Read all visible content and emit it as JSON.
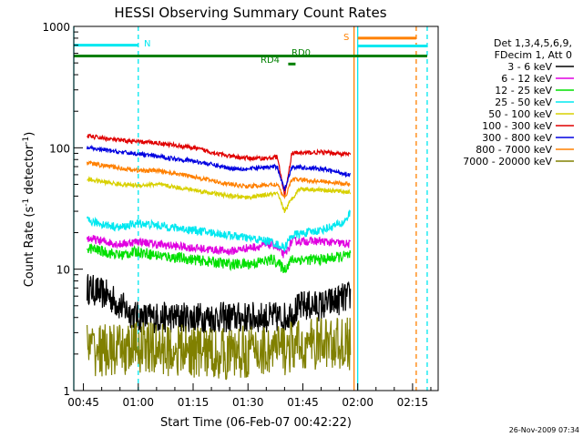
{
  "chart_data": {
    "type": "line",
    "title": "HESSI Observing Summary Count Rates",
    "xlabel": "Start Time (06-Feb-07 00:42:22)",
    "ylabel_main": "Count Rate (s",
    "ylabel_sup1": "-1",
    "ylabel_mid": " detector",
    "ylabel_sup2": "-1",
    "ylabel_end": ")",
    "y_scale": "log",
    "ylim": [
      1,
      1000
    ],
    "xlim": [
      "00:42:22",
      "02:22:00"
    ],
    "x_ticks": [
      "00:45",
      "01:00",
      "01:15",
      "01:30",
      "01:45",
      "02:00",
      "02:15"
    ],
    "y_ticks": [
      "1",
      "10",
      "100",
      "1000"
    ],
    "footer": "26-Nov-2009 07:34",
    "legend": {
      "position": "right",
      "header": [
        "Det 1,3,4,5,6,9,",
        "FDecim 1, Att 0"
      ],
      "entries": [
        {
          "label": "3 - 6 keV",
          "color": "#000000"
        },
        {
          "label": "6 - 12 keV",
          "color": "#e000e0"
        },
        {
          "label": "12 - 25 keV",
          "color": "#00e000"
        },
        {
          "label": "25 - 50 keV",
          "color": "#00e8f0"
        },
        {
          "label": "50 - 100 keV",
          "color": "#d8d000"
        },
        {
          "label": "100 - 300 keV",
          "color": "#e00000"
        },
        {
          "label": "300 - 800 keV",
          "color": "#0000e0"
        },
        {
          "label": "800 - 7000 keV",
          "color": "#ff8000"
        },
        {
          "label": "7000 - 20000 keV",
          "color": "#808000"
        }
      ]
    },
    "annotations": [
      {
        "label": "N",
        "color": "#00e8f0"
      },
      {
        "label": "S",
        "color": "#ff8000"
      },
      {
        "label": "RD0",
        "color": "#008000"
      },
      {
        "label": "RD4",
        "color": "#008000"
      }
    ],
    "series": [
      {
        "name": "3 - 6 keV",
        "color": "#000000",
        "noise": 0.13,
        "segments": [
          [
            [
              "00:46",
              7
            ],
            [
              "00:52",
              6
            ],
            [
              "00:55",
              5
            ],
            [
              "01:00",
              4
            ],
            [
              "01:05",
              4
            ],
            [
              "01:15",
              4
            ],
            [
              "01:30",
              4
            ],
            [
              "01:40",
              4
            ],
            [
              "01:45",
              5
            ],
            [
              "01:50",
              5
            ],
            [
              "01:58",
              6
            ]
          ]
        ]
      },
      {
        "name": "6 - 12 keV",
        "color": "#e000e0",
        "noise": 0.035,
        "segments": [
          [
            [
              "00:46",
              18
            ],
            [
              "00:55",
              16
            ],
            [
              "01:00",
              17
            ],
            [
              "01:05",
              16
            ],
            [
              "01:15",
              15
            ],
            [
              "01:25",
              14
            ],
            [
              "01:30",
              15
            ],
            [
              "01:37",
              16
            ],
            [
              "01:40",
              13
            ],
            [
              "01:42",
              17
            ],
            [
              "01:50",
              17
            ],
            [
              "01:58",
              16
            ]
          ]
        ]
      },
      {
        "name": "12 - 25 keV",
        "color": "#00e000",
        "noise": 0.045,
        "segments": [
          [
            [
              "00:46",
              15
            ],
            [
              "00:55",
              13
            ],
            [
              "01:00",
              14
            ],
            [
              "01:05",
              13
            ],
            [
              "01:15",
              12
            ],
            [
              "01:25",
              11
            ],
            [
              "01:30",
              11
            ],
            [
              "01:37",
              12
            ],
            [
              "01:40",
              10
            ],
            [
              "01:42",
              12
            ],
            [
              "01:50",
              12
            ],
            [
              "01:58",
              13
            ]
          ]
        ]
      },
      {
        "name": "25 - 50 keV",
        "color": "#00e8f0",
        "noise": 0.035,
        "segments": [
          [
            [
              "00:46",
              25
            ],
            [
              "00:55",
              22
            ],
            [
              "01:00",
              24
            ],
            [
              "01:05",
              23
            ],
            [
              "01:15",
              21
            ],
            [
              "01:25",
              19
            ],
            [
              "01:30",
              18
            ],
            [
              "01:36",
              17
            ],
            [
              "01:40",
              15
            ],
            [
              "01:42",
              19
            ],
            [
              "01:50",
              21
            ],
            [
              "01:56",
              24
            ],
            [
              "01:58",
              29
            ]
          ]
        ]
      },
      {
        "name": "50 - 100 keV",
        "color": "#d8d000",
        "noise": 0.018,
        "segments": [
          [
            [
              "00:46",
              55
            ],
            [
              "00:55",
              50
            ],
            [
              "01:00",
              49
            ],
            [
              "01:05",
              50
            ],
            [
              "01:15",
              45
            ],
            [
              "01:25",
              40
            ],
            [
              "01:30",
              39
            ],
            [
              "01:38",
              42
            ],
            [
              "01:40",
              30
            ],
            [
              "01:42",
              38
            ],
            [
              "01:44",
              46
            ],
            [
              "01:50",
              45
            ],
            [
              "01:58",
              43
            ]
          ]
        ]
      },
      {
        "name": "100 - 300 keV",
        "color": "#e00000",
        "noise": 0.018,
        "segments": [
          [
            [
              "00:46",
              125
            ],
            [
              "00:55",
              115
            ],
            [
              "01:00",
              112
            ],
            [
              "01:05",
              110
            ],
            [
              "01:15",
              100
            ],
            [
              "01:25",
              85
            ],
            [
              "01:30",
              82
            ],
            [
              "01:36",
              82
            ],
            [
              "01:38",
              85
            ],
            [
              "01:40",
              40
            ],
            [
              "01:42",
              90
            ],
            [
              "01:50",
              92
            ],
            [
              "01:58",
              88
            ]
          ]
        ]
      },
      {
        "name": "300 - 800 keV",
        "color": "#0000e0",
        "noise": 0.018,
        "segments": [
          [
            [
              "00:46",
              100
            ],
            [
              "00:55",
              92
            ],
            [
              "01:00",
              89
            ],
            [
              "01:05",
              85
            ],
            [
              "01:15",
              78
            ],
            [
              "01:25",
              68
            ],
            [
              "01:30",
              67
            ],
            [
              "01:38",
              70
            ],
            [
              "01:40",
              45
            ],
            [
              "01:42",
              70
            ],
            [
              "01:50",
              67
            ],
            [
              "01:58",
              60
            ]
          ]
        ]
      },
      {
        "name": "800 - 7000 keV",
        "color": "#ff8000",
        "noise": 0.018,
        "segments": [
          [
            [
              "00:46",
              75
            ],
            [
              "00:55",
              68
            ],
            [
              "01:00",
              65
            ],
            [
              "01:05",
              65
            ],
            [
              "01:15",
              58
            ],
            [
              "01:25",
              50
            ],
            [
              "01:30",
              48
            ],
            [
              "01:38",
              50
            ],
            [
              "01:40",
              38
            ],
            [
              "01:42",
              55
            ],
            [
              "01:50",
              53
            ],
            [
              "01:58",
              50
            ]
          ]
        ]
      },
      {
        "name": "7000 - 20000 keV",
        "color": "#808000",
        "noise": 0.22,
        "segments": [
          [
            [
              "00:46",
              2.2
            ],
            [
              "00:55",
              2.1
            ],
            [
              "01:00",
              2.3
            ],
            [
              "01:05",
              2.2
            ],
            [
              "01:15",
              2.1
            ],
            [
              "01:25",
              2
            ],
            [
              "01:30",
              2.1
            ],
            [
              "01:40",
              2.2
            ],
            [
              "01:50",
              2.5
            ],
            [
              "01:58",
              2.4
            ]
          ]
        ]
      }
    ],
    "attenuator_bars": [
      {
        "color": "#00e8f0",
        "start": "00:42:22",
        "end": "01:00",
        "y": 700
      },
      {
        "color": "#ff8000",
        "start": "02:00",
        "end": "02:16",
        "y": 800
      },
      {
        "color": "#00e8f0",
        "start": "02:00",
        "end": "02:19",
        "y": 690
      },
      {
        "color": "#008000",
        "start": "00:42:22",
        "end": "02:19",
        "y": 570
      },
      {
        "color": "#008000",
        "start": "01:41",
        "end": "01:43",
        "y": 490
      }
    ],
    "vertical_markers": [
      {
        "time": "00:42:22",
        "color": "#00e8f0",
        "style": "solid"
      },
      {
        "time": "01:00",
        "color": "#00e8f0",
        "style": "dashed"
      },
      {
        "time": "01:59",
        "color": "#ff8000",
        "style": "solid"
      },
      {
        "time": "02:00",
        "color": "#00e8f0",
        "style": "solid"
      },
      {
        "time": "02:16",
        "color": "#ff8000",
        "style": "dashed"
      },
      {
        "time": "02:19",
        "color": "#00e8f0",
        "style": "dashed"
      }
    ]
  }
}
